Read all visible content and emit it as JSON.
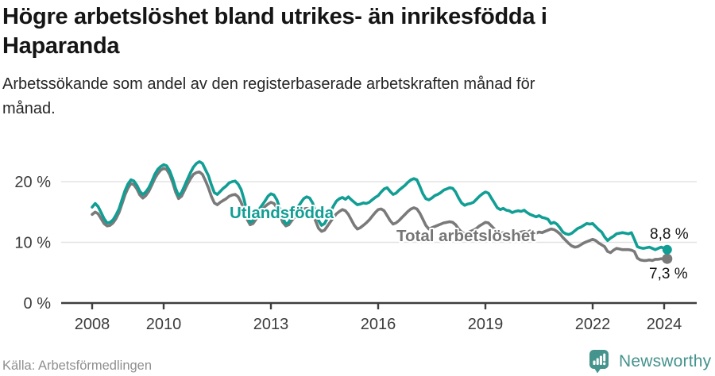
{
  "header": {
    "title": "Högre arbetslöshet bland utrikes- än inrikesfödda i Haparanda",
    "subtitle": "Arbetssökande som andel av den registerbaserade arbetskraften månad för månad."
  },
  "chart": {
    "series_labels": {
      "utlandsfodda": "Utlandsfödda",
      "total": "Total arbetslöshet"
    },
    "end_labels": {
      "utlandsfodda": "8,8 %",
      "total": "7,3 %"
    },
    "colors": {
      "utlandsfodda": "#119E94",
      "total": "#7A7A7A",
      "grid": "#E3E3E3",
      "axis": "#3E3E3E"
    }
  },
  "chart_data": {
    "type": "line",
    "title": "Högre arbetslöshet bland utrikes- än inrikesfödda i Haparanda",
    "subtitle": "Arbetssökande som andel av den registerbaserade arbetskraften månad för månad.",
    "x_start_year": 2008,
    "x_step": "month",
    "x_end": "2024-02",
    "ylim": [
      0,
      25
    ],
    "grid": "horizontal",
    "legend_position": "inline-labels",
    "yticks": [
      {
        "v": 20,
        "label": "20 %"
      },
      {
        "v": 10,
        "label": "10 %"
      },
      {
        "v": 0,
        "label": "0 %"
      }
    ],
    "xticks": [
      {
        "v": 2008,
        "label": "2008"
      },
      {
        "v": 2010,
        "label": "2010"
      },
      {
        "v": 2013,
        "label": "2013"
      },
      {
        "v": 2016,
        "label": "2016"
      },
      {
        "v": 2019,
        "label": "2019"
      },
      {
        "v": 2022,
        "label": "2022"
      },
      {
        "v": 2024,
        "label": "2024"
      }
    ],
    "series": [
      {
        "name": "Total arbetslöshet",
        "color": "#7A7A7A",
        "end_value": 7.3,
        "values": [
          14.6,
          15.0,
          14.7,
          13.9,
          13.1,
          12.7,
          12.8,
          13.2,
          13.9,
          14.9,
          16.3,
          17.8,
          18.9,
          19.7,
          19.5,
          18.8,
          17.8,
          17.3,
          17.7,
          18.4,
          19.4,
          20.5,
          21.3,
          21.9,
          22.2,
          22.0,
          21.2,
          19.9,
          18.3,
          17.2,
          17.6,
          18.6,
          19.6,
          20.5,
          21.2,
          21.5,
          21.6,
          21.2,
          20.2,
          19.0,
          17.6,
          16.5,
          16.2,
          16.6,
          16.9,
          17.2,
          17.6,
          17.8,
          17.9,
          17.5,
          16.6,
          15.2,
          13.8,
          12.9,
          13.1,
          13.8,
          14.6,
          15.3,
          15.9,
          16.3,
          16.6,
          16.4,
          15.7,
          14.5,
          13.3,
          12.7,
          12.9,
          13.6,
          14.2,
          14.8,
          15.2,
          15.5,
          15.6,
          15.4,
          14.7,
          13.5,
          12.3,
          11.8,
          12.0,
          12.7,
          13.4,
          14.1,
          14.7,
          15.1,
          15.4,
          15.2,
          14.6,
          13.7,
          12.8,
          12.2,
          12.4,
          12.8,
          13.2,
          13.7,
          14.3,
          14.9,
          15.4,
          15.5,
          15.2,
          14.4,
          13.6,
          13.0,
          13.2,
          13.6,
          14.1,
          14.6,
          15.1,
          15.5,
          15.7,
          15.5,
          14.8,
          13.8,
          12.8,
          12.2,
          12.4,
          12.6,
          12.8,
          13.0,
          13.2,
          13.3,
          13.4,
          13.3,
          12.9,
          12.2,
          11.7,
          11.4,
          11.6,
          11.8,
          12.0,
          12.3,
          12.7,
          13.0,
          13.3,
          13.2,
          12.7,
          12.2,
          11.7,
          11.4,
          11.6,
          11.5,
          11.4,
          11.3,
          11.5,
          11.6,
          11.7,
          11.8,
          11.6,
          11.9,
          11.7,
          11.5,
          11.7,
          11.6,
          11.8,
          12.0,
          12.2,
          12.1,
          11.8,
          11.4,
          10.8,
          10.3,
          9.8,
          9.4,
          9.2,
          9.3,
          9.6,
          9.9,
          10.1,
          10.3,
          10.5,
          10.3,
          9.9,
          9.6,
          9.3,
          8.5,
          8.3,
          8.7,
          9.0,
          8.9,
          8.8,
          8.8,
          8.8,
          8.7,
          8.5,
          7.4,
          7.1,
          7.0,
          7.0,
          7.1,
          7.0,
          7.2,
          7.2,
          7.3,
          7.2,
          7.3
        ]
      },
      {
        "name": "Utlandsfödda",
        "color": "#119E94",
        "end_value": 8.8,
        "values": [
          15.8,
          16.4,
          15.9,
          14.9,
          13.9,
          13.2,
          13.3,
          13.7,
          14.5,
          15.5,
          17.0,
          18.5,
          19.6,
          20.3,
          20.1,
          19.4,
          18.4,
          17.9,
          18.3,
          19.0,
          20.0,
          21.2,
          22.0,
          22.5,
          22.8,
          22.6,
          21.8,
          20.5,
          18.9,
          17.7,
          18.2,
          19.3,
          20.4,
          21.5,
          22.4,
          23.0,
          23.3,
          23.0,
          22.0,
          21.0,
          19.5,
          18.2,
          17.9,
          18.4,
          18.9,
          19.3,
          19.8,
          20.0,
          20.1,
          19.6,
          18.7,
          17.0,
          14.8,
          13.3,
          13.6,
          14.6,
          15.4,
          16.1,
          16.8,
          17.6,
          18.0,
          17.8,
          17.0,
          15.6,
          14.0,
          13.0,
          13.3,
          14.2,
          15.0,
          15.8,
          16.5,
          17.2,
          17.5,
          17.3,
          16.5,
          15.0,
          13.6,
          12.8,
          13.1,
          14.0,
          15.0,
          16.0,
          16.8,
          17.2,
          17.4,
          17.1,
          17.5,
          17.0,
          16.6,
          16.2,
          16.3,
          16.5,
          16.4,
          16.6,
          17.0,
          17.4,
          17.7,
          18.3,
          18.8,
          19.0,
          18.4,
          17.9,
          18.1,
          18.6,
          19.0,
          19.4,
          19.9,
          20.3,
          20.5,
          20.3,
          19.2,
          18.0,
          17.2,
          17.0,
          17.3,
          17.7,
          17.9,
          18.2,
          18.6,
          18.8,
          19.0,
          18.9,
          18.3,
          17.3,
          16.5,
          16.1,
          16.3,
          16.4,
          16.6,
          17.1,
          17.6,
          18.0,
          18.3,
          18.1,
          17.3,
          16.5,
          15.7,
          15.4,
          15.6,
          15.3,
          15.2,
          14.9,
          15.1,
          15.2,
          15.1,
          15.3,
          14.9,
          14.6,
          14.4,
          14.2,
          14.4,
          14.1,
          14.0,
          13.8,
          13.1,
          13.3,
          13.0,
          12.4,
          11.7,
          11.4,
          11.3,
          11.5,
          11.9,
          12.3,
          12.5,
          12.8,
          13.1,
          13.0,
          13.1,
          12.6,
          12.1,
          11.7,
          10.9,
          10.3,
          10.7,
          11.0,
          11.4,
          11.5,
          11.6,
          11.5,
          11.4,
          11.6,
          10.5,
          9.3,
          9.1,
          9.0,
          9.1,
          9.2,
          9.0,
          8.8,
          9.0,
          9.2,
          9.0,
          8.8
        ]
      }
    ]
  },
  "footer": {
    "source": "Källa: Arbetsförmedlingen",
    "brand": "Newsworthy"
  }
}
